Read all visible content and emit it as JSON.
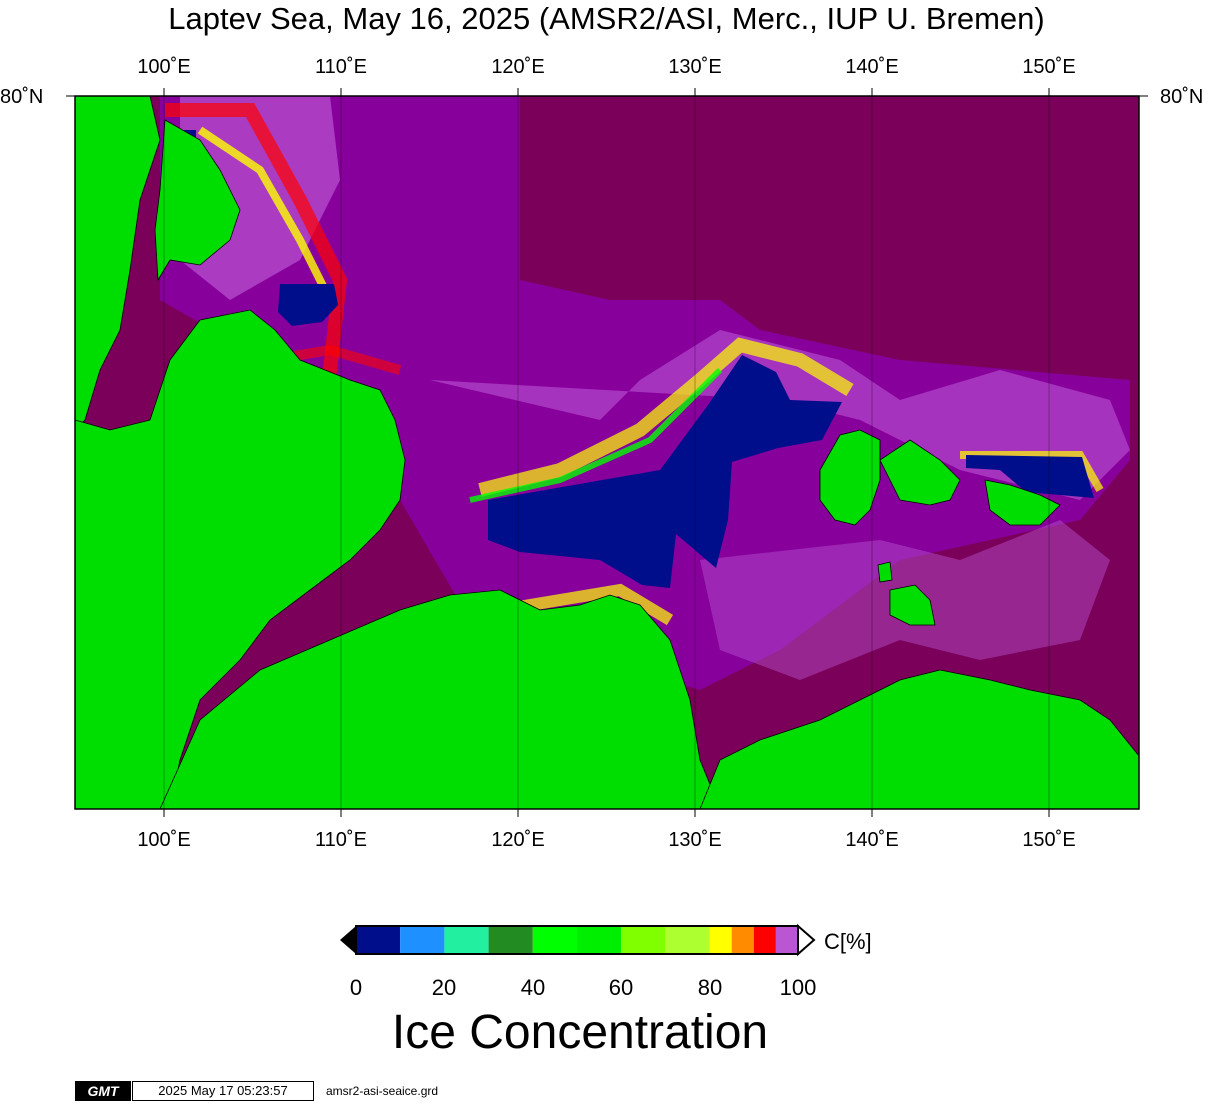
{
  "title": "Laptev Sea, May 16, 2025 (AMSR2/ASI, Merc., IUP U. Bremen)",
  "lon_labels": [
    "100˚E",
    "110˚E",
    "120˚E",
    "130˚E",
    "140˚E",
    "150˚E"
  ],
  "lat_label": "80˚N",
  "colorbar": {
    "unit_label": "C[%]",
    "ticks": [
      "0",
      "20",
      "40",
      "60",
      "80",
      "100"
    ],
    "title": "Ice Concentration",
    "colors": [
      "#000e8c",
      "#1e90ff",
      "#22f0a0",
      "#228b22",
      "#00ff00",
      "#00ee00",
      "#7fff00",
      "#adff2f",
      "#ffff00",
      "#ff8c00",
      "#ff0000",
      "#ba55d3",
      "#9400d3"
    ]
  },
  "colors": {
    "land": "#00dd00",
    "ice_100": "#7a005a",
    "open_water": "#000e8c"
  },
  "footer": {
    "logo": "GMT",
    "timestamp": "2025 May 17 05:23:57",
    "filename": "amsr2-asi-seaice.grd"
  }
}
